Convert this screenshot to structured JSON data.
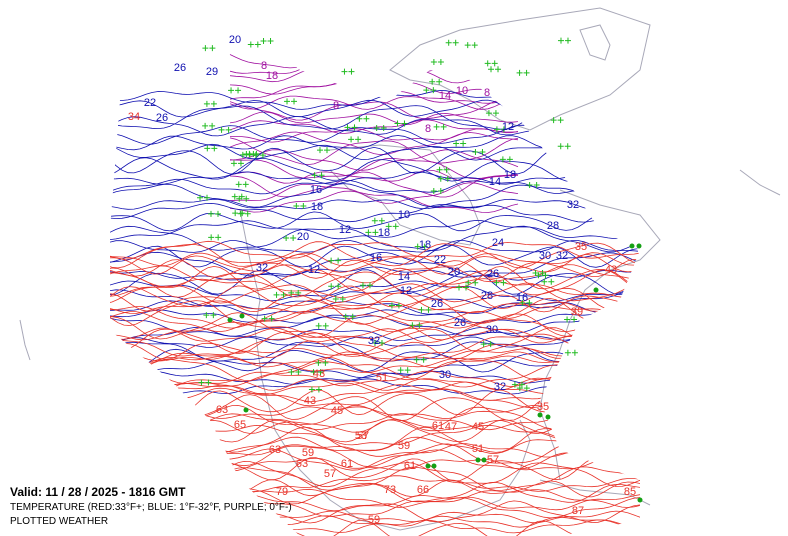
{
  "valid_time": "Valid: 11 / 28 / 2025  -  1816 GMT",
  "legend": {
    "temperature": "TEMPERATURE (RED:33°F+; BLUE: 1°F-32°F, PURPLE; 0°F-)",
    "weather": "PLOTTED WEATHER"
  },
  "contour_labels": {
    "cold": [
      "20",
      "26",
      "29",
      "22",
      "26",
      "12",
      "18",
      "14",
      "16",
      "10",
      "12",
      "18",
      "18",
      "24",
      "16",
      "20",
      "22",
      "26",
      "12",
      "32",
      "14",
      "12",
      "26",
      "28",
      "16",
      "26",
      "30",
      "30",
      "32",
      "32",
      "30",
      "32",
      "28",
      "32",
      "20",
      "18"
    ],
    "subzero": [
      "8",
      "18",
      "10",
      "14",
      "8",
      "8",
      "8"
    ],
    "warm": [
      "34",
      "43",
      "35",
      "39",
      "35",
      "43",
      "43",
      "45",
      "63",
      "65",
      "59",
      "63",
      "63",
      "57",
      "61",
      "57",
      "61",
      "47",
      "45",
      "51",
      "57",
      "61",
      "66",
      "79",
      "73",
      "59",
      "87",
      "85",
      "51",
      "53",
      "59"
    ]
  }
}
